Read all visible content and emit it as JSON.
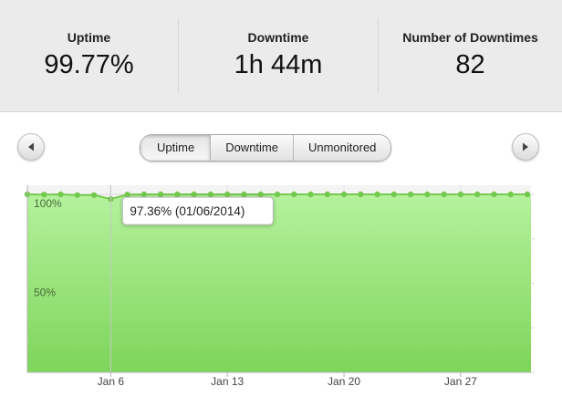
{
  "stats": [
    {
      "label": "Uptime",
      "value": "99.77%"
    },
    {
      "label": "Downtime",
      "value": "1h 44m"
    },
    {
      "label": "Number of Downtimes",
      "value": "82"
    }
  ],
  "tabs": [
    "Uptime",
    "Downtime",
    "Unmonitored"
  ],
  "selected_tab": 0,
  "chart_data": {
    "type": "area",
    "x": [
      "2014-01-01",
      "2014-01-02",
      "2014-01-03",
      "2014-01-04",
      "2014-01-05",
      "2014-01-06",
      "2014-01-07",
      "2014-01-08",
      "2014-01-09",
      "2014-01-10",
      "2014-01-11",
      "2014-01-12",
      "2014-01-13",
      "2014-01-14",
      "2014-01-15",
      "2014-01-16",
      "2014-01-17",
      "2014-01-18",
      "2014-01-19",
      "2014-01-20",
      "2014-01-21",
      "2014-01-22",
      "2014-01-23",
      "2014-01-24",
      "2014-01-25",
      "2014-01-26",
      "2014-01-27",
      "2014-01-28",
      "2014-01-29",
      "2014-01-30",
      "2014-01-31"
    ],
    "series": [
      {
        "name": "Uptime",
        "color": "#74c94f",
        "values": [
          100,
          99.9,
          100,
          99.6,
          99.6,
          97.36,
          99.9,
          100,
          100,
          100,
          100,
          100,
          100,
          100,
          100,
          100,
          100,
          100,
          100,
          100,
          100,
          100,
          100,
          100,
          100,
          100,
          100,
          100,
          100,
          100,
          100
        ]
      }
    ],
    "xlim": [
      "2014-01-01",
      "2014-01-31"
    ],
    "xticks": [
      {
        "value": "2014-01-06",
        "label": "Jan 6"
      },
      {
        "value": "2014-01-13",
        "label": "Jan 13"
      },
      {
        "value": "2014-01-20",
        "label": "Jan 20"
      },
      {
        "value": "2014-01-27",
        "label": "Jan 27"
      }
    ],
    "ylim": [
      0,
      100
    ],
    "yticks": [
      {
        "value": 50,
        "label": "50%"
      },
      {
        "value": 100,
        "label": "100%"
      }
    ],
    "minor_yticks": [
      0,
      25,
      75
    ],
    "grid": true,
    "tooltip": "97.36% (01/06/2014)"
  }
}
